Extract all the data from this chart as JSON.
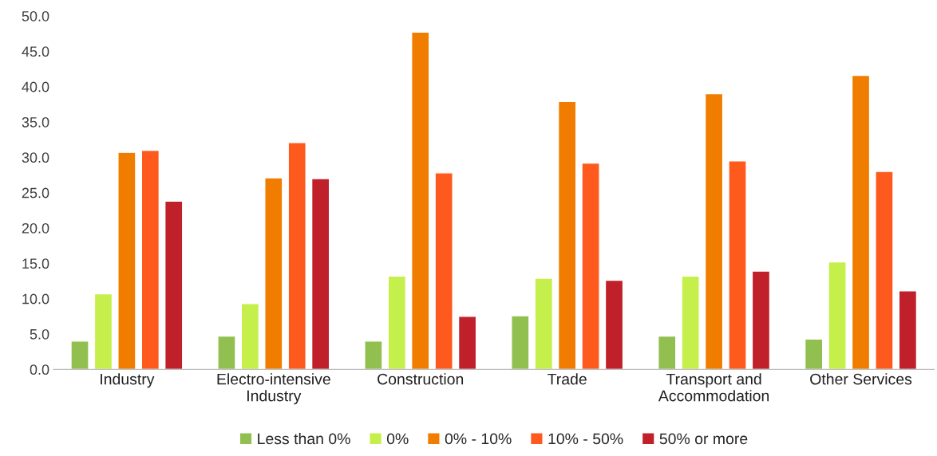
{
  "chart_data": {
    "type": "bar",
    "categories": [
      "Industry",
      "Electro-intensive\nIndustry",
      "Construction",
      "Trade",
      "Transport and\nAccommodation",
      "Other Services"
    ],
    "series": [
      {
        "name": "Less than 0%",
        "color": "#92c050",
        "values": [
          4.0,
          4.7,
          4.0,
          7.6,
          4.7,
          4.3
        ]
      },
      {
        "name": "0%",
        "color": "#c5ef4a",
        "values": [
          10.7,
          9.3,
          13.2,
          12.9,
          13.2,
          15.2
        ]
      },
      {
        "name": "0% - 10%",
        "color": "#f07d00",
        "values": [
          30.7,
          27.1,
          47.7,
          37.9,
          39.0,
          41.6
        ]
      },
      {
        "name": "10% - 50%",
        "color": "#ff5a1e",
        "values": [
          31.0,
          32.1,
          27.8,
          29.2,
          29.5,
          28.0
        ]
      },
      {
        "name": "50% or more",
        "color": "#c0202a",
        "values": [
          23.8,
          27.0,
          7.5,
          12.6,
          13.9,
          11.1
        ]
      }
    ],
    "ylim": [
      0,
      50
    ],
    "yticks": [
      {
        "value": 0,
        "label": "0.0"
      },
      {
        "value": 5,
        "label": "5.0"
      },
      {
        "value": 10,
        "label": "10.0"
      },
      {
        "value": 15,
        "label": "15.0"
      },
      {
        "value": 20,
        "label": "20.0"
      },
      {
        "value": 25,
        "label": "25.0"
      },
      {
        "value": 30,
        "label": "30.0"
      },
      {
        "value": 35,
        "label": "35.0"
      },
      {
        "value": 40,
        "label": "40.0"
      },
      {
        "value": 45,
        "label": "45.0"
      },
      {
        "value": 50,
        "label": "50.0"
      }
    ],
    "legend": "bottom"
  }
}
